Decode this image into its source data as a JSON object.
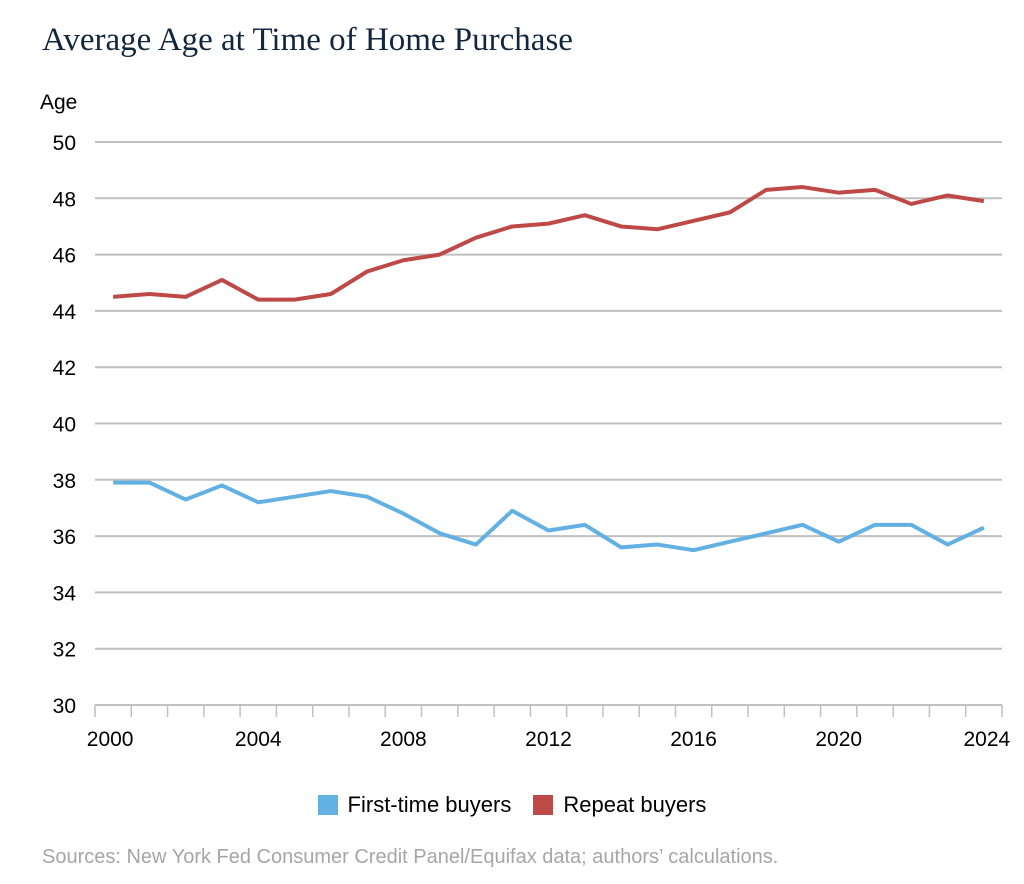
{
  "chart_data": {
    "type": "line",
    "title": "Average Age at Time of Home Purchase",
    "ylabel": "Age",
    "xlabel": "",
    "ylim": [
      30,
      50
    ],
    "yticks": [
      30,
      32,
      34,
      36,
      38,
      40,
      42,
      44,
      46,
      48,
      50
    ],
    "x": [
      2000,
      2001,
      2002,
      2003,
      2004,
      2005,
      2006,
      2007,
      2008,
      2009,
      2010,
      2011,
      2012,
      2013,
      2014,
      2015,
      2016,
      2017,
      2018,
      2019,
      2020,
      2021,
      2022,
      2023,
      2024
    ],
    "xticklabels": [
      "2000",
      "2004",
      "2008",
      "2012",
      "2016",
      "2020",
      "2024"
    ],
    "grid": true,
    "legend_position": "bottom",
    "series": [
      {
        "name": "First-time buyers",
        "color": "#63b0e3",
        "values": [
          37.9,
          37.9,
          37.3,
          37.8,
          37.2,
          37.4,
          37.6,
          37.4,
          36.8,
          36.1,
          35.7,
          36.9,
          36.2,
          36.4,
          35.6,
          35.7,
          35.5,
          35.8,
          36.1,
          36.4,
          35.8,
          36.4,
          36.4,
          35.7,
          36.3
        ]
      },
      {
        "name": "Repeat buyers",
        "color": "#be4a48",
        "values": [
          44.5,
          44.6,
          44.5,
          45.1,
          44.4,
          44.4,
          44.6,
          45.4,
          45.8,
          46.0,
          46.6,
          47.0,
          47.1,
          47.4,
          47.0,
          46.9,
          47.2,
          47.5,
          48.3,
          48.4,
          48.2,
          48.3,
          47.8,
          48.1,
          47.9
        ]
      }
    ],
    "source": "Sources: New York Fed Consumer Credit Panel/Equifax data; authors’ calculations."
  }
}
